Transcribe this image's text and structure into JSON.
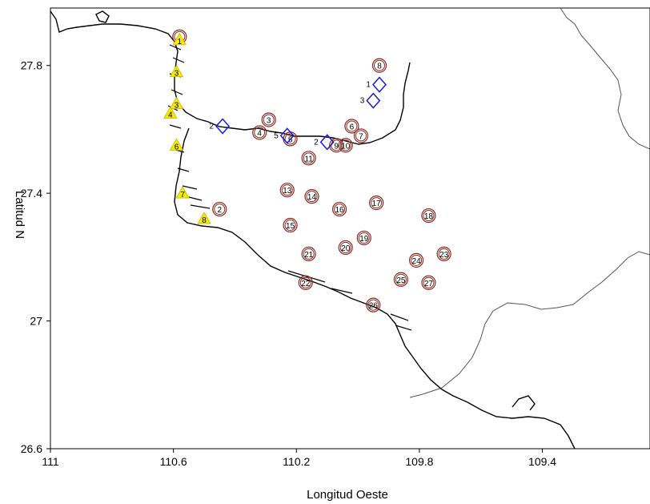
{
  "axes": {
    "xlabel": "Longitud Oeste",
    "ylabel": "Latitud N",
    "xlim": [
      111.0,
      109.05
    ],
    "ylim": [
      26.6,
      27.98
    ],
    "xticks": [
      {
        "value": 111.0,
        "label": "111"
      },
      {
        "value": 110.6,
        "label": "110.6"
      },
      {
        "value": 110.2,
        "label": "110.2"
      },
      {
        "value": 109.8,
        "label": "109.8"
      },
      {
        "value": 109.4,
        "label": "109.4"
      }
    ],
    "yticks": [
      {
        "value": 27.8,
        "label": "27.8"
      },
      {
        "value": 27.4,
        "label": "27.4"
      },
      {
        "value": 27.0,
        "label": "27"
      },
      {
        "value": 26.6,
        "label": "26.6"
      }
    ]
  },
  "colors": {
    "coast": "#000000",
    "river": "#555555",
    "circle": "#8b2a22",
    "diamond": "#1a1ad6",
    "triangle": "#f5ec00"
  },
  "chart_data": {
    "type": "scatter",
    "series": [
      {
        "marker": "circle",
        "points": [
          {
            "label": "1",
            "lon": 110.58,
            "lat": 27.89
          },
          {
            "label": "2",
            "lon": 110.45,
            "lat": 27.35
          },
          {
            "label": "3",
            "lon": 110.29,
            "lat": 27.63
          },
          {
            "label": "4",
            "lon": 110.32,
            "lat": 27.59
          },
          {
            "label": "5",
            "lon": 110.22,
            "lat": 27.57
          },
          {
            "label": "6",
            "lon": 110.02,
            "lat": 27.61
          },
          {
            "label": "7",
            "lon": 109.99,
            "lat": 27.58
          },
          {
            "label": "8",
            "lon": 109.93,
            "lat": 27.8
          },
          {
            "label": "9",
            "lon": 110.07,
            "lat": 27.55
          },
          {
            "label": "10",
            "lon": 110.04,
            "lat": 27.55
          },
          {
            "label": "11",
            "lon": 110.16,
            "lat": 27.51
          },
          {
            "label": "13",
            "lon": 110.23,
            "lat": 27.41
          },
          {
            "label": "14",
            "lon": 110.15,
            "lat": 27.39
          },
          {
            "label": "15",
            "lon": 110.22,
            "lat": 27.3
          },
          {
            "label": "16",
            "lon": 110.06,
            "lat": 27.35
          },
          {
            "label": "17",
            "lon": 109.94,
            "lat": 27.37
          },
          {
            "label": "18",
            "lon": 109.77,
            "lat": 27.33
          },
          {
            "label": "19",
            "lon": 109.98,
            "lat": 27.26
          },
          {
            "label": "20",
            "lon": 110.04,
            "lat": 27.23
          },
          {
            "label": "21",
            "lon": 110.16,
            "lat": 27.21
          },
          {
            "label": "22",
            "lon": 110.17,
            "lat": 27.12
          },
          {
            "label": "23",
            "lon": 109.72,
            "lat": 27.21
          },
          {
            "label": "24",
            "lon": 109.81,
            "lat": 27.19
          },
          {
            "label": "25",
            "lon": 109.86,
            "lat": 27.13
          },
          {
            "label": "26",
            "lon": 109.95,
            "lat": 27.05
          },
          {
            "label": "27",
            "lon": 109.77,
            "lat": 27.12
          }
        ]
      },
      {
        "marker": "diamond",
        "points": [
          {
            "label": "1",
            "lon": 109.93,
            "lat": 27.74
          },
          {
            "label": "2",
            "lon": 110.44,
            "lat": 27.61
          },
          {
            "label": "2",
            "lon": 110.1,
            "lat": 27.56
          },
          {
            "label": "3",
            "lon": 109.95,
            "lat": 27.69
          },
          {
            "label": "5",
            "lon": 110.23,
            "lat": 27.58
          }
        ]
      },
      {
        "marker": "triangle",
        "points": [
          {
            "label": "1",
            "lon": 110.58,
            "lat": 27.88
          },
          {
            "label": "3",
            "lon": 110.59,
            "lat": 27.78
          },
          {
            "label": "3",
            "lon": 110.59,
            "lat": 27.68
          },
          {
            "label": "4",
            "lon": 110.61,
            "lat": 27.65
          },
          {
            "label": "6",
            "lon": 110.59,
            "lat": 27.55
          },
          {
            "label": "7",
            "lon": 110.57,
            "lat": 27.4
          },
          {
            "label": "8",
            "lon": 110.5,
            "lat": 27.32
          }
        ]
      }
    ]
  }
}
